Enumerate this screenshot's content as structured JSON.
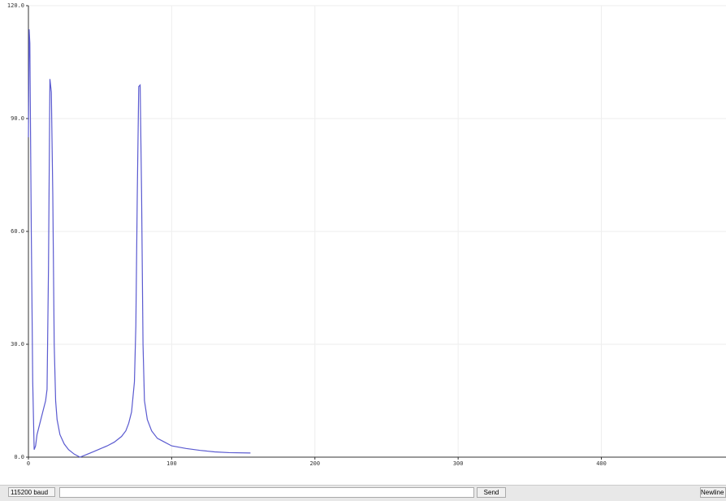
{
  "chart_data": {
    "type": "line",
    "x": [
      0,
      0.5,
      1,
      2,
      3,
      4,
      5,
      6,
      8,
      10,
      12,
      13,
      14,
      15,
      16,
      17,
      18,
      19,
      20,
      22,
      25,
      28,
      32,
      36,
      40,
      45,
      50,
      55,
      60,
      65,
      68,
      70,
      72,
      74,
      75,
      76,
      77,
      78,
      79,
      80,
      81,
      83,
      86,
      90,
      95,
      100,
      110,
      120,
      130,
      140,
      155
    ],
    "series": [
      {
        "color": "#5a5ad0",
        "values": [
          85,
          113.7,
          110,
          60,
          20,
          2,
          3,
          6,
          9,
          12,
          15,
          18,
          50,
          100.5,
          97,
          70,
          30,
          15,
          10,
          6,
          3.5,
          2,
          0.8,
          0,
          0.6,
          1.4,
          2.2,
          3,
          4,
          5.5,
          7,
          9,
          12,
          20,
          35,
          70,
          98.5,
          98.9,
          70,
          30,
          15,
          10,
          7,
          5,
          4,
          3,
          2.3,
          1.8,
          1.4,
          1.2,
          1.1
        ]
      }
    ],
    "xlim": [
      0,
      487
    ],
    "xticks": [
      0,
      100,
      200,
      300,
      400
    ],
    "ylim": [
      0,
      120
    ],
    "yticks": [
      {
        "value": 0,
        "label": "0.0"
      },
      {
        "value": 30,
        "label": "30.0"
      },
      {
        "value": 60,
        "label": "60.0"
      },
      {
        "value": 90,
        "label": "90.0"
      },
      {
        "value": 120,
        "label": "120.0"
      }
    ],
    "grid": true
  },
  "controls": {
    "baud": "115200 baud",
    "send": "Send",
    "line_ending": "Newline"
  }
}
